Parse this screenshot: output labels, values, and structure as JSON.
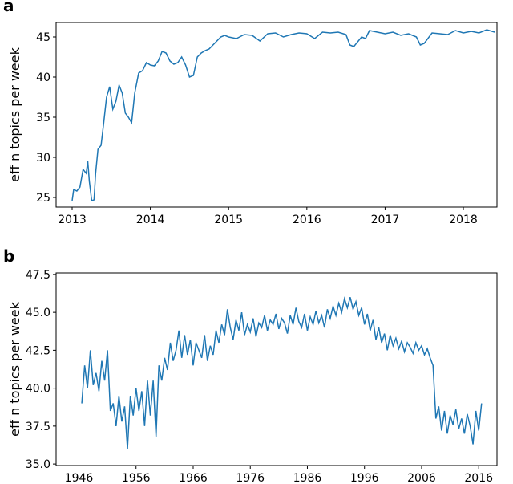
{
  "chart_data": [
    {
      "type": "line",
      "panel_label": "a",
      "ylabel": "eff n topics per week",
      "xlim": [
        2012.795,
        2018.43
      ],
      "ylim": [
        23.8,
        46.8
      ],
      "xticks": [
        2013,
        2014,
        2015,
        2016,
        2017,
        2018
      ],
      "yticks": [
        25,
        30,
        35,
        40,
        45
      ],
      "series": [
        {
          "color": "#1f77b4",
          "x": [
            2013.0,
            2013.02,
            2013.06,
            2013.1,
            2013.14,
            2013.18,
            2013.2,
            2013.22,
            2013.25,
            2013.28,
            2013.3,
            2013.33,
            2013.37,
            2013.4,
            2013.44,
            2013.48,
            2013.52,
            2013.56,
            2013.6,
            2013.64,
            2013.68,
            2013.72,
            2013.76,
            2013.8,
            2013.85,
            2013.9,
            2013.95,
            2014.0,
            2014.05,
            2014.1,
            2014.15,
            2014.2,
            2014.25,
            2014.3,
            2014.35,
            2014.4,
            2014.45,
            2014.5,
            2014.55,
            2014.6,
            2014.65,
            2014.7,
            2014.75,
            2014.8,
            2014.85,
            2014.9,
            2014.95,
            2015.0,
            2015.1,
            2015.2,
            2015.3,
            2015.4,
            2015.5,
            2015.6,
            2015.7,
            2015.8,
            2015.9,
            2016.0,
            2016.1,
            2016.2,
            2016.3,
            2016.4,
            2016.5,
            2016.55,
            2016.6,
            2016.7,
            2016.75,
            2016.8,
            2016.9,
            2017.0,
            2017.1,
            2017.2,
            2017.3,
            2017.4,
            2017.45,
            2017.5,
            2017.6,
            2017.7,
            2017.8,
            2017.9,
            2018.0,
            2018.1,
            2018.2,
            2018.3,
            2018.4
          ],
          "values": [
            24.6,
            26.0,
            25.8,
            26.3,
            28.5,
            28.0,
            29.5,
            27.0,
            24.6,
            24.7,
            28.0,
            31.0,
            31.5,
            34.0,
            37.5,
            38.8,
            36.0,
            37.0,
            39.0,
            38.0,
            35.5,
            35.0,
            34.3,
            38.0,
            40.5,
            40.8,
            41.8,
            41.5,
            41.4,
            42.0,
            43.2,
            43.0,
            42.0,
            41.6,
            41.8,
            42.5,
            41.5,
            40.0,
            40.2,
            42.5,
            43.0,
            43.3,
            43.5,
            44.0,
            44.5,
            45.0,
            45.2,
            45.0,
            44.8,
            45.3,
            45.2,
            44.5,
            45.4,
            45.5,
            45.0,
            45.3,
            45.5,
            45.4,
            44.8,
            45.6,
            45.5,
            45.6,
            45.3,
            44.0,
            43.8,
            45.0,
            44.8,
            45.8,
            45.6,
            45.4,
            45.6,
            45.2,
            45.4,
            45.0,
            44.0,
            44.2,
            45.5,
            45.4,
            45.3,
            45.8,
            45.5,
            45.7,
            45.5,
            45.9,
            45.6
          ]
        }
      ]
    },
    {
      "type": "line",
      "panel_label": "b",
      "ylabel": "eff n topics per week",
      "xlim": [
        1942.0,
        2019.2
      ],
      "ylim": [
        34.9,
        47.6
      ],
      "xticks": [
        1946,
        1956,
        1966,
        1976,
        1986,
        1996,
        2006,
        2016
      ],
      "yticks": [
        {
          "value": 35,
          "label": "35.0"
        },
        {
          "value": 37.5,
          "label": "37.5"
        },
        {
          "value": 40,
          "label": "40.0"
        },
        {
          "value": 42.5,
          "label": "42.5"
        },
        {
          "value": 45,
          "label": "45.0"
        },
        {
          "value": 47.5,
          "label": "47.5"
        }
      ],
      "series": [
        {
          "color": "#1f77b4",
          "x": [
            1946.5,
            1947,
            1947.5,
            1948,
            1948.5,
            1949,
            1949.5,
            1950,
            1950.5,
            1951,
            1951.5,
            1952,
            1952.5,
            1953,
            1953.5,
            1954,
            1954.5,
            1955,
            1955.5,
            1956,
            1956.5,
            1957,
            1957.5,
            1958,
            1958.5,
            1959,
            1959.5,
            1960,
            1960.5,
            1961,
            1961.5,
            1962,
            1962.5,
            1963,
            1963.5,
            1964,
            1964.5,
            1965,
            1965.5,
            1966,
            1966.5,
            1967,
            1967.5,
            1968,
            1968.5,
            1969,
            1969.5,
            1970,
            1970.5,
            1971,
            1971.5,
            1972,
            1972.5,
            1973,
            1973.5,
            1974,
            1974.5,
            1975,
            1975.5,
            1976,
            1976.5,
            1977,
            1977.5,
            1978,
            1978.5,
            1979,
            1979.5,
            1980,
            1980.5,
            1981,
            1981.5,
            1982,
            1982.5,
            1983,
            1983.5,
            1984,
            1984.5,
            1985,
            1985.5,
            1986,
            1986.5,
            1987,
            1987.5,
            1988,
            1988.5,
            1989,
            1989.5,
            1990,
            1990.5,
            1991,
            1991.5,
            1992,
            1992.5,
            1993,
            1993.5,
            1994,
            1994.5,
            1995,
            1995.5,
            1996,
            1996.5,
            1997,
            1997.5,
            1998,
            1998.5,
            1999,
            1999.5,
            2000,
            2000.5,
            2001,
            2001.5,
            2002,
            2002.5,
            2003,
            2003.5,
            2004,
            2004.5,
            2005,
            2005.5,
            2006,
            2006.5,
            2007,
            2007.5,
            2008,
            2008.5,
            2009,
            2009.5,
            2010,
            2010.5,
            2011,
            2011.5,
            2012,
            2012.5,
            2013,
            2013.5,
            2014,
            2014.5,
            2015,
            2015.5,
            2016,
            2016.5
          ],
          "values": [
            39.0,
            41.5,
            40.0,
            42.5,
            40.2,
            41.0,
            39.8,
            41.8,
            40.5,
            42.5,
            38.5,
            39.0,
            37.5,
            39.5,
            37.8,
            38.8,
            36.0,
            39.5,
            38.2,
            40.0,
            38.5,
            39.8,
            37.5,
            40.5,
            38.2,
            40.5,
            36.8,
            41.5,
            40.5,
            42.0,
            41.2,
            43.0,
            41.8,
            42.5,
            43.8,
            42.0,
            43.5,
            42.2,
            43.2,
            41.5,
            43.0,
            42.5,
            42.0,
            43.5,
            41.8,
            42.8,
            42.2,
            43.8,
            43.0,
            44.2,
            43.5,
            45.2,
            44.0,
            43.2,
            44.5,
            43.8,
            45.0,
            43.5,
            44.2,
            43.7,
            44.6,
            43.4,
            44.3,
            44.0,
            44.8,
            43.8,
            44.5,
            44.2,
            44.9,
            43.9,
            44.6,
            44.3,
            43.6,
            44.8,
            44.2,
            45.3,
            44.4,
            44.0,
            44.9,
            43.8,
            44.7,
            44.2,
            45.1,
            44.3,
            44.8,
            44.0,
            45.2,
            44.6,
            45.4,
            44.8,
            45.6,
            45.0,
            45.9,
            45.3,
            46.0,
            45.2,
            45.7,
            44.8,
            45.3,
            44.2,
            44.9,
            43.8,
            44.5,
            43.2,
            44.0,
            43.0,
            43.6,
            42.5,
            43.5,
            42.8,
            43.3,
            42.6,
            43.1,
            42.4,
            43.0,
            42.7,
            42.3,
            43.0,
            42.5,
            42.8,
            42.2,
            42.6,
            42.0,
            41.5,
            38.0,
            38.8,
            37.2,
            38.5,
            37.0,
            38.2,
            37.6,
            38.6,
            37.3,
            38.0,
            37.0,
            38.3,
            37.5,
            36.3,
            38.5,
            37.2,
            39.0
          ]
        }
      ]
    }
  ]
}
